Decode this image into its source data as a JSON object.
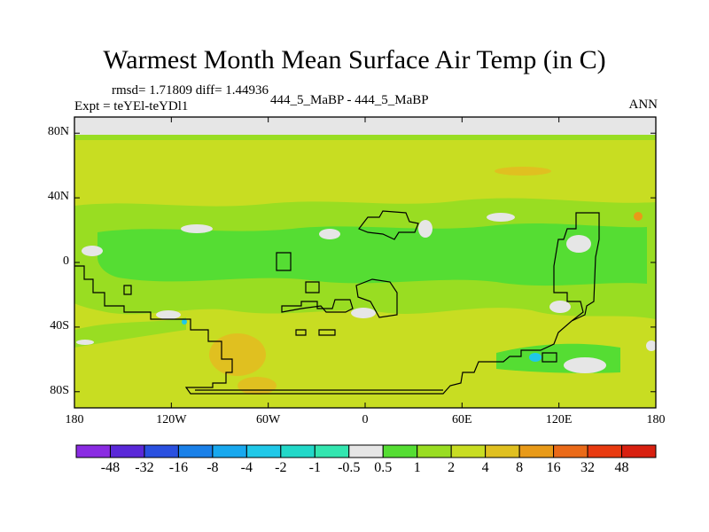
{
  "title": "Warmest Month Mean Surface Air Temp (in C)",
  "stats": "rmsd= 1.71809 diff= 1.44936",
  "expt_label": "Expt = teYEl-teYDl1",
  "center_label": "444_5_MaBP - 444_5_MaBP",
  "season_label": "ANN",
  "chart_data": {
    "type": "heatmap",
    "title": "Warmest Month Mean Surface Air Temp (in C)",
    "projection": "cylindrical equidistant",
    "lon_range": [
      -180,
      180
    ],
    "lat_range": [
      -90,
      90
    ],
    "lat_ticks": [
      {
        "value": 80,
        "label": "80N"
      },
      {
        "value": 40,
        "label": "40N"
      },
      {
        "value": 0,
        "label": "0"
      },
      {
        "value": -40,
        "label": "40S"
      },
      {
        "value": -80,
        "label": "80S"
      }
    ],
    "lon_ticks": [
      {
        "value": -180,
        "label": "180"
      },
      {
        "value": -120,
        "label": "120W"
      },
      {
        "value": -60,
        "label": "60W"
      },
      {
        "value": 0,
        "label": "0"
      },
      {
        "value": 60,
        "label": "60E"
      },
      {
        "value": 120,
        "label": "120E"
      },
      {
        "value": 180,
        "label": "180"
      }
    ],
    "contour_levels": [
      -48,
      -32,
      -16,
      -8,
      -4,
      -2,
      -1,
      -0.5,
      0.5,
      1,
      2,
      4,
      8,
      16,
      32,
      48
    ],
    "colorbar_labels": [
      "-48",
      "-32",
      "-16",
      "-8",
      "-4",
      "-2",
      "-1",
      "-0.5",
      "0.5",
      "1",
      "2",
      "4",
      "8",
      "16",
      "32",
      "48"
    ],
    "colors": [
      "#8a2be2",
      "#5a28d8",
      "#2a50e0",
      "#1a80e8",
      "#18a8ee",
      "#20c8e8",
      "#22d8c8",
      "#33e6b0",
      "#e6e6e6",
      "#55dd33",
      "#99dd22",
      "#c8dd22",
      "#e0c020",
      "#e89a18",
      "#ea6a18",
      "#e83a10",
      "#d82010"
    ],
    "field_regions": [
      {
        "lon": [
          -180,
          180
        ],
        "lat": [
          76,
          90
        ],
        "level": "-0.5 to 0.5"
      },
      {
        "lon": [
          -180,
          180
        ],
        "lat": [
          73,
          76
        ],
        "level": "1 to 2"
      },
      {
        "lon": [
          -180,
          180
        ],
        "lat": [
          36,
          73
        ],
        "level": "2 to 4"
      },
      {
        "lon": [
          -180,
          180
        ],
        "lat": [
          -22,
          36
        ],
        "level": "1 to 2"
      },
      {
        "lon": [
          -180,
          180
        ],
        "lat": [
          -90,
          -30
        ],
        "level": "2 to 4"
      }
    ]
  }
}
